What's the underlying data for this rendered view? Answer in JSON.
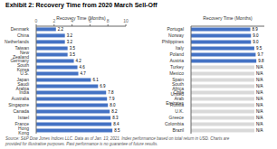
{
  "title": "Exhibit 2: Recovery Time from 2020 March Sell-Off",
  "annotations": [
    "Source: S&P Dow Jones Indices LLC. Data as of Jan. 13, 2021. Index performance based on total return in USD. Charts are\nprovided for illustrative purposes. Past performance is no guarantee of future results."
  ],
  "chart_data": [
    {
      "type": "bar",
      "orientation": "horizontal",
      "xlabel": "Recovery Time (Months)",
      "categories": [
        "Denmark",
        "China",
        "Netherlands",
        "Taiwan",
        "New Zealand",
        "Germany",
        "South Korea",
        "U.S.",
        "Japan",
        "Saudi Arabia",
        "India",
        "Australia",
        "Singapore",
        "Canada",
        "Israel",
        "France",
        "Hong Kong"
      ],
      "values": [
        2.2,
        3.2,
        3.2,
        3.5,
        3.5,
        4.2,
        4.6,
        4.7,
        6.1,
        6.9,
        7.8,
        7.9,
        8.0,
        8.2,
        8.3,
        8.4,
        8.5
      ],
      "value_labels": [
        "2.2",
        "3.2",
        "3.2",
        "3.5",
        "3.5",
        "4.2",
        "4.6",
        "4.7",
        "6.1",
        "6.9",
        "7.8",
        "7.9",
        "8.0",
        "8.2",
        "8.3",
        "8.4",
        "8.5"
      ],
      "color": "#4472C4",
      "xlim": [
        0,
        10
      ],
      "xticks": [
        0,
        2,
        4,
        6,
        8,
        10
      ],
      "data_labels": true,
      "grid": false
    },
    {
      "type": "bar",
      "orientation": "horizontal",
      "xlabel": "Recovery Time (Months)",
      "categories": [
        "Portugal",
        "Norway",
        "Philippines",
        "Italy",
        "Poland",
        "Austria",
        "Turkey",
        "Mexico",
        "Spain",
        "South Africa",
        "Chile",
        "United Arab Emirates",
        "Russia",
        "U.K.",
        "Greece",
        "Colombia",
        "Brazil"
      ],
      "values": [
        8.9,
        9.0,
        9.0,
        9.5,
        9.7,
        9.8,
        9.5,
        9.5,
        9.5,
        9.5,
        9.5,
        9.5,
        9.5,
        9.5,
        9.5,
        9.5,
        9.5
      ],
      "value_labels": [
        "8.9",
        "9.0",
        "9.0",
        "9.5",
        "9.7",
        "9.8",
        "N/A",
        "N/A",
        "N/A",
        "N/A",
        "N/A",
        "N/A",
        "N/A",
        "N/A",
        "N/A",
        "N/A",
        "N/A"
      ],
      "colors": [
        "#4472C4",
        "#4472C4",
        "#4472C4",
        "#4472C4",
        "#4472C4",
        "#4472C4",
        "#D9D9D9",
        "#D9D9D9",
        "#D9D9D9",
        "#D9D9D9",
        "#D9D9D9",
        "#D9D9D9",
        "#D9D9D9",
        "#D9D9D9",
        "#D9D9D9",
        "#D9D9D9",
        "#D9D9D9"
      ],
      "xlim": [
        0,
        11
      ],
      "xticks": [],
      "tick_labels": "y",
      "data_labels": true,
      "grid": false
    }
  ]
}
